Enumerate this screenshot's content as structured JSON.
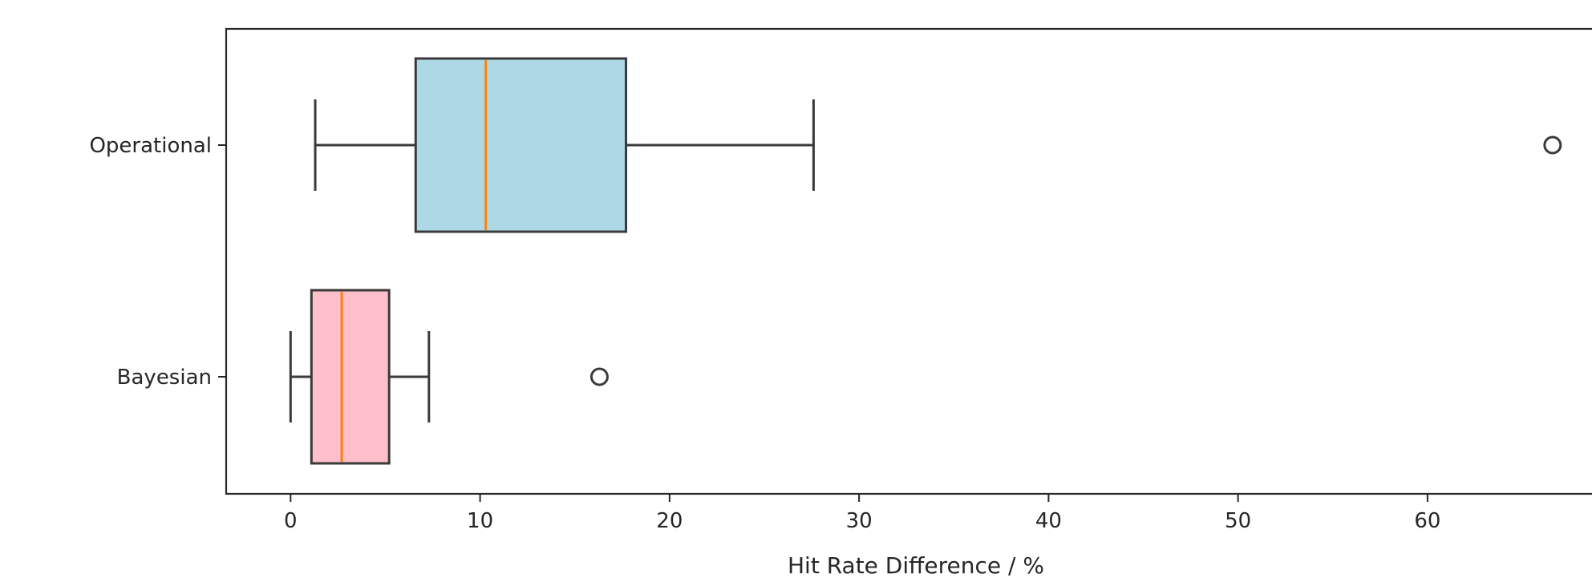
{
  "chart_data": {
    "type": "boxplot",
    "orientation": "horizontal",
    "title": "",
    "xlabel": "Hit Rate Difference / %",
    "ylabel": "",
    "xlim": [
      -3.4,
      69.4
    ],
    "xticks": [
      0,
      10,
      20,
      30,
      40,
      50,
      60
    ],
    "grid": false,
    "series": [
      {
        "name": "Operational",
        "color": "#add8e6",
        "median_color": "#ff7f0e",
        "whisker_low": 1.3,
        "q1": 6.6,
        "median": 10.3,
        "q3": 17.7,
        "whisker_high": 27.6,
        "outliers": [
          66.6
        ]
      },
      {
        "name": "Bayesian",
        "color": "#ffc0cb",
        "median_color": "#ff7f0e",
        "whisker_low": 0.0,
        "q1": 1.1,
        "median": 2.7,
        "q3": 5.2,
        "whisker_high": 7.3,
        "outliers": [
          16.3
        ]
      }
    ]
  }
}
